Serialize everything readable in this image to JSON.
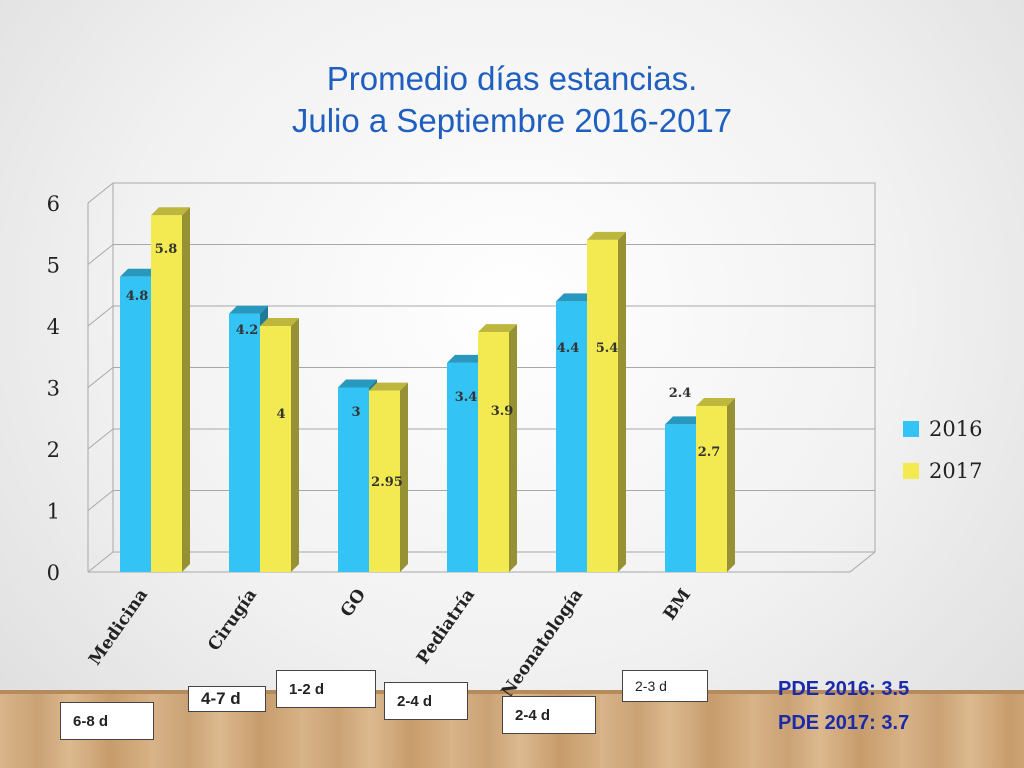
{
  "title_line1": "Promedio días estancias.",
  "title_line2": "Julio a Septiembre 2016-2017",
  "colors": {
    "s2016": "#33c3f4",
    "s2017": "#f2ea50"
  },
  "chart_data": {
    "type": "bar",
    "categories": [
      "Medicina",
      "Cirugía",
      "GO",
      "Pediatría",
      "Neonatología",
      "BM"
    ],
    "series": [
      {
        "name": "2016",
        "values": [
          4.8,
          4.2,
          3,
          3.4,
          4.4,
          2.4
        ],
        "labels": [
          "4.8",
          "4.2",
          "3",
          "3.4",
          "4.4",
          "2.4"
        ]
      },
      {
        "name": "2017",
        "values": [
          5.8,
          4,
          2.95,
          3.9,
          5.4,
          2.7
        ],
        "labels": [
          "5.8",
          "4",
          "2.95",
          "3.9",
          "5.4",
          "2.7"
        ]
      }
    ],
    "ylim": [
      0,
      6
    ],
    "yticks": [
      "0",
      "1",
      "2",
      "3",
      "4",
      "5",
      "6"
    ],
    "grid": true,
    "legend_position": "right"
  },
  "tags": [
    "6-8 d",
    "4-7 d",
    "1-2 d",
    "2-4 d",
    "2-4 d",
    "2-3 d"
  ],
  "pde_2016": "PDE 2016: 3.5",
  "pde_2017": "PDE 2017: 3.7"
}
